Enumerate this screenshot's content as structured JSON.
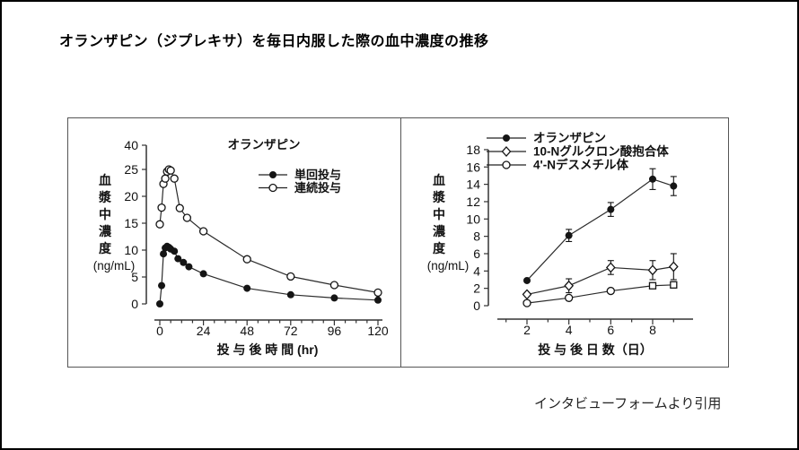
{
  "page": {
    "title": "オランザピン（ジプレキサ）を毎日内服した際の血中濃度の推移",
    "citation": "インタビューフォームより引用"
  },
  "chart_data": [
    {
      "type": "line",
      "panel": "left",
      "title": "オランザピン",
      "ylabel_chars": [
        "血",
        "漿",
        "中",
        "濃",
        "度"
      ],
      "ylabel_unit": "(ng/mL)",
      "xlabel": "投 与 後 時 間 (hr)",
      "x_ticks": [
        0,
        24,
        48,
        72,
        96,
        120
      ],
      "x_minor": {
        "start": 0,
        "end": 120,
        "step": 6
      },
      "xlim": [
        0,
        120
      ],
      "y_ticks": [
        0,
        5,
        10,
        15,
        20,
        25
      ],
      "y_top_label": "40",
      "ylim": [
        0,
        25
      ],
      "grid": "off",
      "legend_position": "upper-right-inside",
      "series": [
        {
          "name": "単回投与",
          "marker": "filled-circle",
          "x": [
            0,
            1,
            2,
            3,
            4,
            5,
            6,
            8,
            10,
            13,
            16,
            24,
            48,
            72,
            96,
            120
          ],
          "y": [
            0,
            3.4,
            9.3,
            10.4,
            10.7,
            10.5,
            10.2,
            9.8,
            8.4,
            7.7,
            6.9,
            5.6,
            2.9,
            1.7,
            1.1,
            0.7
          ]
        },
        {
          "name": "連続投与",
          "marker": "open-circle",
          "x": [
            0,
            1,
            2,
            3,
            4,
            5,
            6,
            8,
            11,
            15,
            24,
            48,
            72,
            96,
            120
          ],
          "y": [
            14.8,
            17.9,
            22.3,
            23.3,
            24.6,
            25.0,
            24.8,
            23.3,
            17.8,
            16.0,
            13.5,
            8.3,
            5.1,
            3.5,
            2.1
          ]
        }
      ]
    },
    {
      "type": "line",
      "panel": "right",
      "title": "",
      "ylabel_chars": [
        "血",
        "漿",
        "中",
        "濃",
        "度"
      ],
      "ylabel_unit": "(ng/mL)",
      "xlabel": "投 与 後 日 数（日）",
      "x_ticks": [
        2,
        4,
        6,
        8
      ],
      "x_minor": {
        "start": 1,
        "end": 9,
        "step": 1
      },
      "xlim": [
        1,
        9
      ],
      "y_ticks": [
        0,
        2,
        4,
        6,
        8,
        10,
        12,
        14,
        16,
        18
      ],
      "y_top_label": "",
      "ylim": [
        0,
        18
      ],
      "grid": "off",
      "legend_position": "top-inside",
      "series": [
        {
          "name": "オランザピン",
          "marker": "filled-circle",
          "x": [
            2,
            4,
            6,
            8,
            9
          ],
          "y": [
            2.9,
            8.1,
            11.1,
            14.6,
            13.8
          ],
          "err": [
            0,
            0.7,
            0.8,
            1.2,
            1.1
          ]
        },
        {
          "name": "10-Nグルクロン酸抱合体",
          "marker": "open-diamond",
          "x": [
            2,
            4,
            6,
            8,
            9
          ],
          "y": [
            1.3,
            2.3,
            4.4,
            4.1,
            4.5
          ],
          "err": [
            0,
            0.8,
            0.8,
            1.1,
            1.5
          ]
        },
        {
          "name": "4'-Nデスメチル体",
          "marker": "open-circle",
          "markers": [
            "open-circle",
            "open-circle",
            "open-circle",
            "open-square",
            "open-square"
          ],
          "x": [
            2,
            4,
            6,
            8,
            9
          ],
          "y": [
            0.3,
            0.9,
            1.7,
            2.3,
            2.4
          ],
          "err": [
            0,
            0,
            0,
            0.25,
            0.35
          ]
        }
      ]
    }
  ]
}
